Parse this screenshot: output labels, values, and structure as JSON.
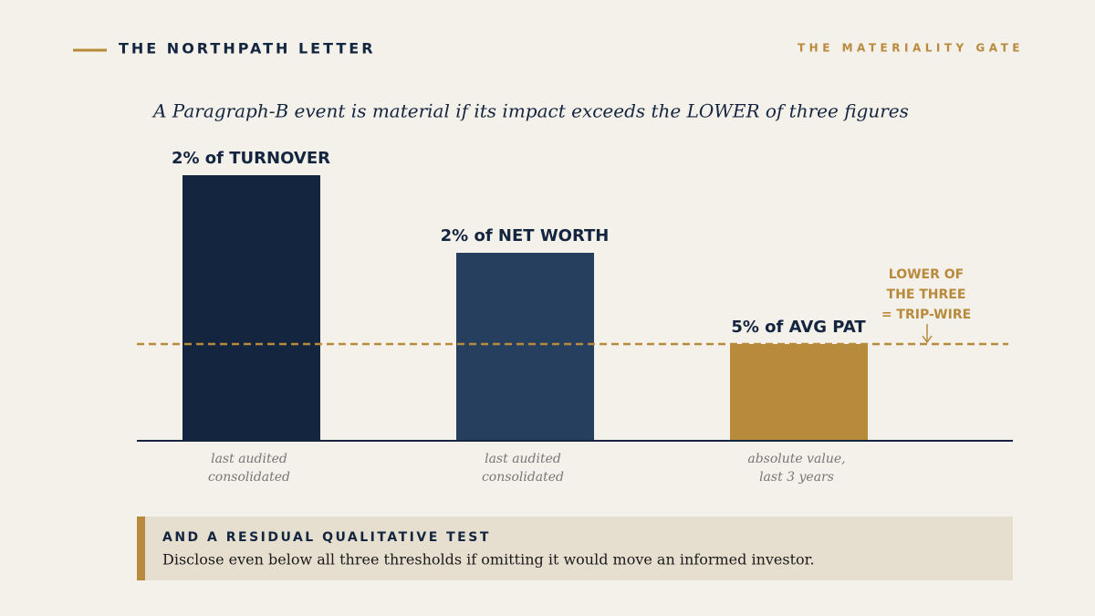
{
  "header": {
    "brand": "THE NORTHPATH LETTER",
    "section": "THE MATERIALITY GATE"
  },
  "headline": "A Paragraph-B event is material if its impact exceeds the LOWER of three figures",
  "thresholds": [
    {
      "label": "2% of TURNOVER",
      "note": [
        "last audited",
        "consolidated"
      ]
    },
    {
      "label": "2% of NET WORTH",
      "note": [
        "last audited",
        "consolidated"
      ]
    },
    {
      "label": "5% of AVG PAT",
      "note": [
        "absolute value,",
        "last 3 years"
      ]
    }
  ],
  "marker": [
    "LOWER OF",
    "THE THREE",
    "= TRIP-WIRE"
  ],
  "callout": {
    "title": "AND A RESIDUAL QUALITATIVE TEST",
    "body": "Disclose even below all three thresholds if omitting it would move an informed investor."
  }
}
